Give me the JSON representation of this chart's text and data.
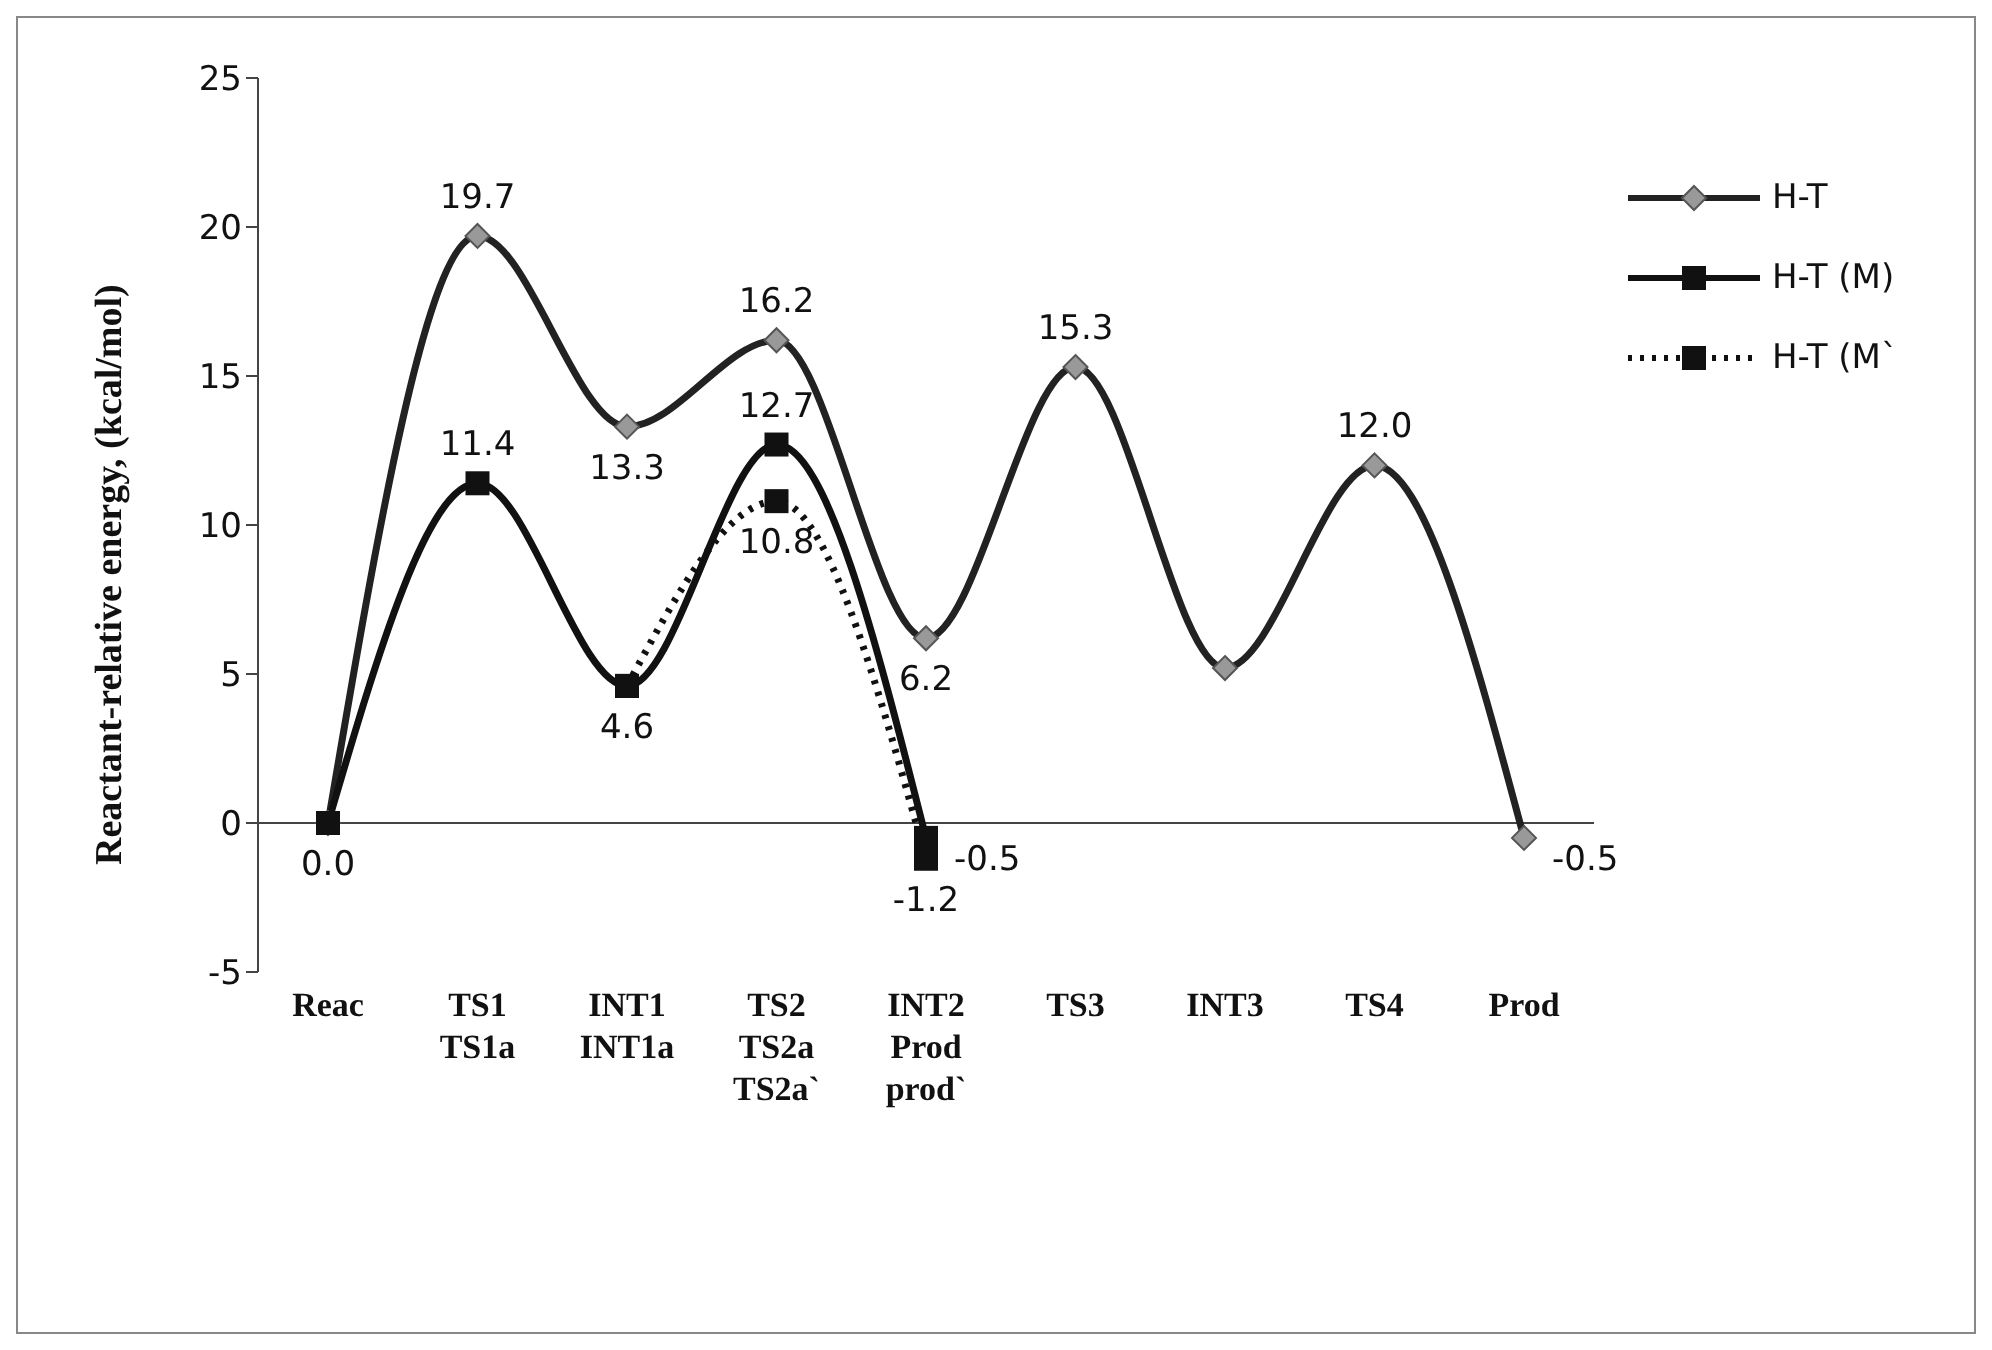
{
  "chart_data": {
    "type": "line",
    "categories": [
      "Reac",
      "TS1\nTS1a",
      "INT1\nINT1a",
      "TS2\nTS2a\nTS2a`",
      "INT2\nProd\nprod`",
      "TS3",
      "INT3",
      "TS4",
      "Prod"
    ],
    "ylabel": "Reactant-relative energy, (kcal/mol)",
    "series": [
      {
        "name": "H-T",
        "color": "#222222",
        "marker": "diamond",
        "line_style": "solid",
        "values": [
          0,
          19.7,
          13.3,
          16.2,
          6.2,
          15.3,
          5.2,
          12.0,
          -0.5
        ],
        "value_labels": [
          null,
          "19.7",
          "13.3",
          "16.2",
          "6.2",
          "15.3",
          null,
          "12.0",
          "-0.5"
        ]
      },
      {
        "name": "H-T (M)",
        "color": "#111111",
        "marker": "square",
        "line_style": "solid",
        "values": [
          0,
          11.4,
          4.6,
          12.7,
          -0.5,
          null,
          null,
          null,
          null
        ],
        "value_labels": [
          "0.0",
          "11.4",
          "4.6",
          "12.7",
          "-0.5",
          null,
          null,
          null,
          null
        ]
      },
      {
        "name": "H-T (M`",
        "color": "#111111",
        "marker": "square",
        "line_style": "dotted",
        "values": [
          null,
          null,
          4.6,
          10.8,
          -1.2,
          null,
          null,
          null,
          null
        ],
        "value_labels": [
          null,
          null,
          null,
          "10.8",
          "-1.2",
          null,
          null,
          null,
          null
        ]
      }
    ],
    "ylim": [
      -5,
      25
    ],
    "yticks": [
      -5,
      0,
      5,
      10,
      15,
      20,
      25
    ],
    "ref_lines": [
      {
        "axis": "y",
        "value": 0,
        "color": "#444444"
      }
    ],
    "grid": false,
    "legend": "top right"
  }
}
